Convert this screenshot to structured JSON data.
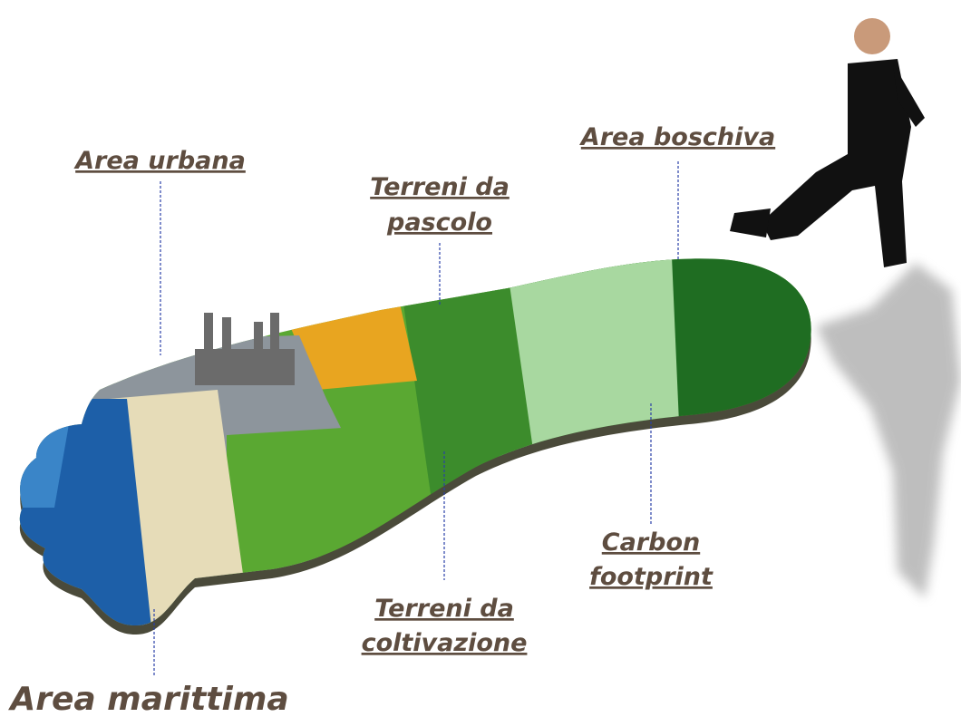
{
  "labels": [
    {
      "lines": [
        "Area urbana"
      ]
    },
    {
      "lines": [
        "Terreni da",
        "pascolo"
      ]
    },
    {
      "lines": [
        "Area boschiva"
      ]
    },
    {
      "lines": [
        "Carbon",
        "footprint"
      ]
    },
    {
      "lines": [
        "Terreni da",
        "coltivazione"
      ]
    },
    {
      "lines": [
        "Area marittima"
      ]
    }
  ]
}
